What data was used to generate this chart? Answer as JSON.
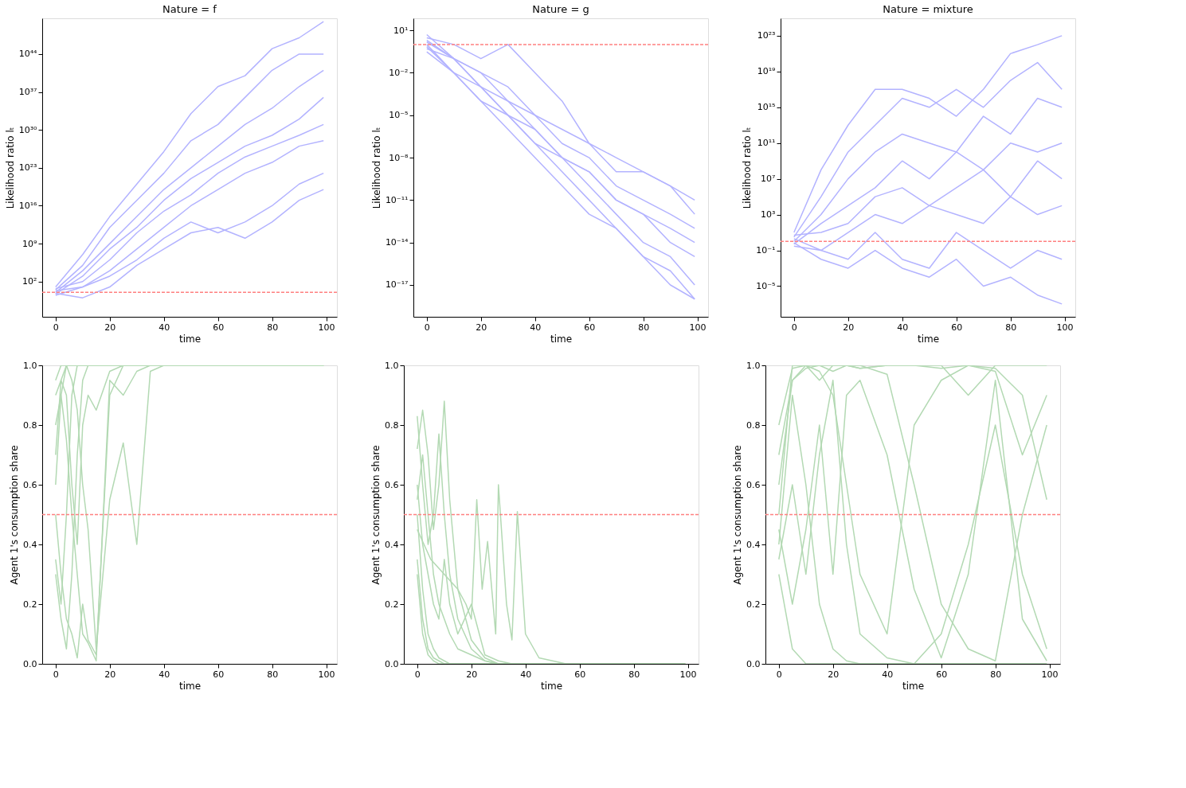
{
  "chart_data": [
    {
      "type": "line",
      "title": "Nature = f",
      "xlabel": "time",
      "ylabel": "Likelihood ratio lₜ",
      "log": "y",
      "legend": false,
      "x": [
        0,
        10,
        20,
        30,
        40,
        50,
        60,
        70,
        80,
        90,
        99
      ],
      "xlim": [
        -4.95,
        103.95
      ],
      "xticks": [
        0,
        20,
        40,
        60,
        80,
        100
      ],
      "ylim": [
        3.16e-05,
        3.98e+50
      ],
      "yticks": [
        {
          "value": 100.0,
          "label": "10²"
        },
        {
          "value": 1000000000.0,
          "label": "10⁹"
        },
        {
          "value": 1e+16,
          "label": "10¹⁶"
        },
        {
          "value": 1e+23,
          "label": "10²³"
        },
        {
          "value": 1e+30,
          "label": "10³⁰"
        },
        {
          "value": 1e+37,
          "label": "10³⁷"
        },
        {
          "value": 1e+44,
          "label": "10⁴⁴"
        }
      ],
      "ref_lines": [
        {
          "axis": "y",
          "value": 1,
          "color": "#ff8080",
          "line_style": "dashed"
        }
      ],
      "series": [
        {
          "color": "#b3b3ff",
          "values": [
            10,
            10000000.0,
            100000000000000.0,
            1e+20,
            1e+26,
            1e+33,
            1e+38,
            1e+40,
            1e+45,
            1e+47,
            1e+50
          ]
        },
        {
          "color": "#b3b3ff",
          "values": [
            3,
            100000.0,
            1000000000000.0,
            1e+17,
            1e+22,
            1e+28,
            1e+31,
            1e+36,
            1e+41,
            1e+44,
            1e+44
          ]
        },
        {
          "color": "#b3b3ff",
          "values": [
            1,
            10000.0,
            1000000000.0,
            100000000000000.0,
            1e+19,
            1e+23,
            1e+27,
            1e+31,
            1e+34,
            1e+38,
            1e+41
          ]
        },
        {
          "color": "#b3b3ff",
          "values": [
            0.5,
            1000.0,
            100000000.0,
            1000000000000.0,
            1e+17,
            1e+21,
            1e+24,
            1e+27,
            1e+29,
            1e+32,
            1e+36
          ]
        },
        {
          "color": "#b3b3ff",
          "values": [
            5,
            100.0,
            1000000.0,
            100000000000.0,
            1000000000000000.0,
            1e+18,
            1e+22,
            1e+25,
            1e+27,
            1e+29,
            1e+31
          ]
        },
        {
          "color": "#b3b3ff",
          "values": [
            0.3,
            10.0,
            10000.0,
            100000000.0,
            1000000000000.0,
            1e+16,
            1e+19,
            1e+22,
            1e+24,
            1e+27,
            1e+28
          ]
        },
        {
          "color": "#b3b3ff",
          "values": [
            2,
            10.0,
            1000.0,
            1000000.0,
            10000000000.0,
            10000000000000.0,
            100000000000.0,
            10000000000000.0,
            1e+16,
            1e+20,
            1e+22
          ]
        },
        {
          "color": "#b3b3ff",
          "values": [
            0.7,
            0.1,
            10.0,
            100000.0,
            100000000.0,
            100000000000.0,
            1000000000000.0,
            10000000000.0,
            10000000000000.0,
            1e+17,
            1e+19
          ]
        }
      ]
    },
    {
      "type": "line",
      "title": "Nature = g",
      "xlabel": "time",
      "ylabel": "Likelihood ratio lₜ",
      "log": "y",
      "legend": false,
      "x": [
        0,
        10,
        20,
        30,
        40,
        50,
        60,
        70,
        80,
        90,
        99
      ],
      "xlim": [
        -4.95,
        103.95
      ],
      "xticks": [
        0,
        20,
        40,
        60,
        80,
        100
      ],
      "ylim": [
        5.6e-20,
        70.8
      ],
      "yticks": [
        {
          "value": 1e-17,
          "label": "10⁻¹⁷"
        },
        {
          "value": 1e-14,
          "label": "10⁻¹⁴"
        },
        {
          "value": 1e-11,
          "label": "10⁻¹¹"
        },
        {
          "value": 1e-08,
          "label": "10⁻⁸"
        },
        {
          "value": 1e-05,
          "label": "10⁻⁵"
        },
        {
          "value": 0.01,
          "label": "10⁻²"
        },
        {
          "value": 10.0,
          "label": "10¹"
        }
      ],
      "ref_lines": [
        {
          "axis": "y",
          "value": 1,
          "color": "#ff8080",
          "line_style": "dashed"
        }
      ],
      "series": [
        {
          "color": "#b3b3ff",
          "values": [
            3,
            1,
            0.1,
            1,
            0.01,
            0.0001,
            1e-07,
            1e-08,
            1e-09,
            1e-10,
            1e-11
          ]
        },
        {
          "color": "#b3b3ff",
          "values": [
            0.5,
            0.1,
            0.01,
            0.001,
            1e-05,
            1e-06,
            1e-07,
            1e-09,
            1e-09,
            1e-10,
            1e-12
          ]
        },
        {
          "color": "#b3b3ff",
          "values": [
            2,
            0.1,
            0.001,
            0.0001,
            1e-05,
            1e-07,
            1e-08,
            1e-10,
            1e-11,
            1e-12,
            1e-13
          ]
        },
        {
          "color": "#b3b3ff",
          "values": [
            1,
            0.01,
            0.001,
            1e-05,
            1e-06,
            1e-08,
            1e-09,
            1e-11,
            1e-12,
            1e-14,
            1e-15
          ]
        },
        {
          "color": "#b3b3ff",
          "values": [
            0.3,
            0.01,
            0.0001,
            1e-05,
            1e-07,
            1e-08,
            1e-10,
            1e-12,
            1e-14,
            1e-15,
            1e-17
          ]
        },
        {
          "color": "#b3b3ff",
          "values": [
            5,
            0.1,
            0.001,
            1e-05,
            1e-07,
            1e-09,
            1e-11,
            1e-13,
            1e-15,
            1e-16,
            1e-18
          ]
        },
        {
          "color": "#b3b3ff",
          "values": [
            1.5,
            0.1,
            0.01,
            0.0001,
            1e-06,
            1e-08,
            1e-09,
            1e-11,
            1e-12,
            1e-13,
            1e-14
          ]
        },
        {
          "color": "#b3b3ff",
          "values": [
            0.7,
            0.01,
            0.0001,
            1e-06,
            1e-08,
            1e-10,
            1e-12,
            1e-13,
            1e-15,
            1e-17,
            1e-18
          ]
        }
      ]
    },
    {
      "type": "line",
      "title": "Nature = mixture",
      "xlabel": "time",
      "ylabel": "Likelihood ratio lₜ",
      "log": "y",
      "legend": false,
      "x": [
        0,
        10,
        20,
        30,
        40,
        50,
        60,
        70,
        80,
        90,
        99
      ],
      "xlim": [
        -4.95,
        103.95
      ],
      "xticks": [
        0,
        20,
        40,
        60,
        80,
        100
      ],
      "ylim": [
        3.7e-09,
        8.9e+24
      ],
      "yticks": [
        {
          "value": 1e-05,
          "label": "10⁻⁵"
        },
        {
          "value": 0.1,
          "label": "10⁻¹"
        },
        {
          "value": 1000.0,
          "label": "10³"
        },
        {
          "value": 10000000.0,
          "label": "10⁷"
        },
        {
          "value": 100000000000.0,
          "label": "10¹¹"
        },
        {
          "value": 1000000000000000.0,
          "label": "10¹⁵"
        },
        {
          "value": 1e+19,
          "label": "10¹⁹"
        },
        {
          "value": 1e+23,
          "label": "10²³"
        }
      ],
      "ref_lines": [
        {
          "axis": "y",
          "value": 1,
          "color": "#ff8080",
          "line_style": "dashed"
        }
      ],
      "series": [
        {
          "color": "#b3b3ff",
          "values": [
            10,
            100000000.0,
            10000000000000.0,
            1e+17,
            1e+17,
            1e+16,
            100000000000000.0,
            1e+17,
            1e+21,
            1e+22,
            1e+23
          ]
        },
        {
          "color": "#b3b3ff",
          "values": [
            3,
            100000.0,
            10000000000.0,
            10000000000000.0,
            1e+16,
            1000000000000000.0,
            1e+17,
            1000000000000000.0,
            1e+18,
            1e+20,
            1e+17
          ]
        },
        {
          "color": "#b3b3ff",
          "values": [
            1,
            1000.0,
            10000000.0,
            10000000000.0,
            1000000000000.0,
            100000000000.0,
            10000000000.0,
            100000000000000.0,
            1000000000000.0,
            1e+16,
            1000000000000000.0
          ]
        },
        {
          "color": "#b3b3ff",
          "values": [
            0.5,
            100.0,
            10000.0,
            1000000.0,
            1000000000.0,
            10000000.0,
            10000000000.0,
            100000000.0,
            100000000000.0,
            10000000000.0,
            100000000000.0
          ]
        },
        {
          "color": "#b3b3ff",
          "values": [
            5,
            10.0,
            100.0,
            100000.0,
            1000000.0,
            10000.0,
            1000000.0,
            100000000.0,
            100000.0,
            1000000000.0,
            10000000.0
          ]
        },
        {
          "color": "#b3b3ff",
          "values": [
            0.3,
            0.1,
            10.0,
            1000.0,
            100.0,
            10000.0,
            1000.0,
            100.0,
            100000.0,
            1000.0,
            10000.0
          ]
        },
        {
          "color": "#b3b3ff",
          "values": [
            2,
            0.1,
            0.01,
            10.0,
            0.01,
            0.001,
            10.0,
            0.1,
            0.001,
            0.1,
            0.01
          ]
        },
        {
          "color": "#b3b3ff",
          "values": [
            0.7,
            0.01,
            0.001,
            0.1,
            0.001,
            0.0001,
            0.01,
            1e-05,
            0.0001,
            1e-06,
            1e-07
          ]
        }
      ]
    },
    {
      "type": "line",
      "xlabel": "time",
      "ylabel": "Agent 1's consumption share",
      "legend": false,
      "x": [
        0,
        2,
        4,
        6,
        8,
        10,
        12,
        15,
        20,
        25,
        30,
        35,
        40,
        99
      ],
      "xlim": [
        -4.95,
        103.95
      ],
      "xticks": [
        0,
        20,
        40,
        60,
        80,
        100
      ],
      "ylim": [
        0,
        1
      ],
      "yticks": [
        {
          "value": 0,
          "label": "0.0"
        },
        0.2,
        0.4,
        0.6,
        0.8,
        {
          "value": 1,
          "label": "1.0"
        }
      ],
      "ref_lines": [
        {
          "axis": "y",
          "value": 0.5,
          "color": "#ff8080",
          "line_style": "dashed"
        }
      ],
      "series": [
        {
          "color": "#b3d9b3",
          "values": [
            0.95,
            1,
            1,
            1,
            1,
            1,
            1,
            1,
            1,
            1,
            1,
            1,
            1,
            1
          ]
        },
        {
          "color": "#b3d9b3",
          "values": [
            0.6,
            0.9,
            1,
            1,
            1,
            1,
            1,
            1,
            1,
            1,
            1,
            1,
            1,
            1
          ]
        },
        {
          "color": "#b3d9b3",
          "values": [
            0.35,
            0.2,
            0.5,
            0.9,
            1,
            1,
            1,
            1,
            1,
            1,
            1,
            1,
            1,
            1
          ]
        },
        {
          "color": "#b3d9b3",
          "values": [
            0.3,
            0.15,
            0.05,
            0.3,
            0.7,
            0.95,
            1,
            1,
            1,
            1,
            1,
            1,
            1,
            1
          ]
        },
        {
          "color": "#b3d9b3",
          "values": [
            0.5,
            0.3,
            0.15,
            0.1,
            0.02,
            0.2,
            0.08,
            0.03,
            0.9,
            1,
            1,
            1,
            1,
            1
          ]
        },
        {
          "color": "#b3d9b3",
          "values": [
            0.8,
            0.9,
            0.75,
            0.5,
            0.3,
            0.1,
            0.07,
            0.01,
            0.95,
            0.9,
            0.98,
            1,
            1,
            1
          ]
        },
        {
          "color": "#b3d9b3",
          "values": [
            0.9,
            0.95,
            1,
            0.95,
            0.85,
            0.6,
            0.45,
            0.05,
            0.55,
            0.74,
            0.4,
            0.98,
            1,
            1
          ]
        },
        {
          "color": "#b3d9b3",
          "values": [
            0.7,
            0.95,
            0.9,
            0.6,
            0.4,
            0.8,
            0.9,
            0.85,
            0.98,
            1,
            1,
            1,
            1,
            1
          ]
        }
      ]
    },
    {
      "type": "line",
      "xlabel": "time",
      "ylabel": "Agent 1's consumption share",
      "legend": false,
      "x": [
        0,
        2,
        4,
        6,
        8,
        10,
        12,
        15,
        20,
        25,
        30,
        35,
        40,
        50,
        99
      ],
      "xlim": [
        -4.95,
        103.95
      ],
      "xticks": [
        0,
        20,
        40,
        60,
        80,
        100
      ],
      "ylim": [
        0,
        1
      ],
      "yticks": [
        {
          "value": 0,
          "label": "0.0"
        },
        0.2,
        0.4,
        0.6,
        0.8,
        {
          "value": 1,
          "label": "1.0"
        }
      ],
      "ref_lines": [
        {
          "axis": "y",
          "value": 0.5,
          "color": "#ff8080",
          "line_style": "dashed"
        }
      ],
      "series": [
        {
          "color": "#b3d9b3",
          "values": [
            0.83,
            0.6,
            0.4,
            0.5,
            0.77,
            0.5,
            0.3,
            0.15,
            0.05,
            0.01,
            0,
            0,
            0,
            0,
            0
          ]
        },
        {
          "color": "#b3d9b3",
          "values": [
            0.72,
            0.85,
            0.7,
            0.45,
            0.6,
            0.88,
            0.55,
            0.25,
            0.08,
            0.02,
            0,
            0,
            0,
            0,
            0
          ]
        },
        {
          "color": "#b3d9b3",
          "values": [
            0.5,
            0.25,
            0.1,
            0.05,
            0.02,
            0.01,
            0,
            0,
            0,
            0,
            0,
            0,
            0,
            0,
            0
          ]
        },
        {
          "color": "#b3d9b3",
          "values": [
            0.35,
            0.15,
            0.05,
            0.02,
            0.01,
            0,
            0,
            0,
            0,
            0,
            0,
            0,
            0,
            0,
            0
          ]
        },
        {
          "color": "#b3d9b3",
          "values": [
            0.6,
            0.4,
            0.3,
            0.2,
            0.15,
            0.35,
            0.2,
            0.1,
            0.2,
            0.03,
            0.01,
            0,
            0,
            0,
            0
          ]
        },
        {
          "color": "#b3d9b3",
          "x": [
            0,
            5,
            10,
            15,
            18,
            20,
            22,
            24,
            26,
            29,
            30,
            33,
            35,
            37,
            40,
            45,
            55,
            99
          ],
          "values": [
            0.45,
            0.35,
            0.3,
            0.25,
            0.2,
            0.15,
            0.55,
            0.25,
            0.41,
            0.1,
            0.6,
            0.2,
            0.08,
            0.51,
            0.1,
            0.02,
            0,
            0
          ]
        },
        {
          "color": "#b3d9b3",
          "values": [
            0.3,
            0.1,
            0.03,
            0.01,
            0,
            0,
            0,
            0,
            0,
            0,
            0,
            0,
            0,
            0,
            0
          ]
        },
        {
          "color": "#b3d9b3",
          "values": [
            0.55,
            0.7,
            0.5,
            0.3,
            0.2,
            0.15,
            0.1,
            0.05,
            0.03,
            0.01,
            0,
            0,
            0,
            0,
            0
          ]
        }
      ]
    },
    {
      "type": "line",
      "xlabel": "time",
      "ylabel": "Agent 1's consumption share",
      "legend": false,
      "x": [
        0,
        5,
        10,
        15,
        20,
        25,
        30,
        40,
        50,
        60,
        70,
        80,
        90,
        99
      ],
      "xlim": [
        -4.95,
        103.95
      ],
      "xticks": [
        0,
        20,
        40,
        60,
        80,
        100
      ],
      "ylim": [
        0,
        1
      ],
      "yticks": [
        {
          "value": 0,
          "label": "0.0"
        },
        0.2,
        0.4,
        0.6,
        0.8,
        {
          "value": 1,
          "label": "1.0"
        }
      ],
      "ref_lines": [
        {
          "axis": "y",
          "value": 0.5,
          "color": "#ff8080",
          "line_style": "dashed"
        }
      ],
      "series": [
        {
          "color": "#b3d9b3",
          "values": [
            0.5,
            1,
            1,
            0.95,
            1,
            1,
            0.99,
            1,
            1,
            1,
            0.9,
            1,
            1,
            1
          ]
        },
        {
          "color": "#b3d9b3",
          "values": [
            0.3,
            0.05,
            0,
            0,
            0,
            0,
            0,
            0,
            0,
            0,
            0,
            0,
            0,
            0
          ]
        },
        {
          "color": "#b3d9b3",
          "values": [
            0.4,
            0.9,
            0.6,
            0.2,
            0.05,
            0.01,
            0,
            0,
            0,
            0,
            0,
            0,
            0,
            0
          ]
        },
        {
          "color": "#b3d9b3",
          "values": [
            0.6,
            0.95,
            1,
            0.98,
            0.9,
            0.6,
            0.3,
            0.1,
            0.8,
            0.95,
            1,
            0.98,
            0.7,
            0.9
          ]
        },
        {
          "color": "#b3d9b3",
          "values": [
            0.35,
            0.6,
            0.3,
            0.7,
            0.95,
            0.4,
            0.1,
            0.02,
            0,
            0.1,
            0.4,
            0.8,
            0.3,
            0.05
          ]
        },
        {
          "color": "#b3d9b3",
          "values": [
            0.7,
            0.95,
            0.99,
            1,
            1,
            1,
            1,
            0.97,
            0.6,
            0.2,
            0.05,
            0.01,
            0.5,
            0.8
          ]
        },
        {
          "color": "#b3d9b3",
          "values": [
            0.45,
            0.2,
            0.45,
            0.8,
            0.3,
            0.9,
            0.95,
            0.7,
            0.25,
            0.02,
            0.3,
            0.95,
            0.15,
            0.01
          ]
        },
        {
          "color": "#b3d9b3",
          "values": [
            0.8,
            0.99,
            1,
            1,
            0.98,
            1,
            0.99,
            1,
            1,
            0.99,
            1,
            0.99,
            0.9,
            0.55
          ]
        }
      ]
    }
  ]
}
